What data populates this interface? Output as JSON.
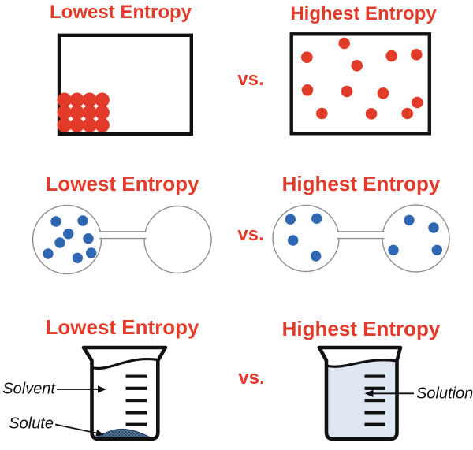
{
  "palette": {
    "red": "#e23b2a",
    "blue": "#2f67b2",
    "black": "#111111",
    "circle_gray": "#8f8f8f",
    "solution_fill": "#dfe7f3",
    "solute_navy": "#1c3c60",
    "solute_hatch": "#6e89a6"
  },
  "rows": [
    {
      "left_title": "Lowest Entropy",
      "vs_label": "vs.",
      "right_title": "Highest Entropy",
      "left_dot_radius": 9.2,
      "left_box_dots": [
        [
          81.7,
          126.7
        ],
        [
          97.7,
          126.7
        ],
        [
          113.7,
          126.7
        ],
        [
          129.7,
          126.7
        ],
        [
          81.7,
          142.7
        ],
        [
          97.7,
          142.7
        ],
        [
          113.7,
          142.7
        ],
        [
          129.7,
          142.7
        ],
        [
          81.7,
          158.7
        ],
        [
          97.7,
          158.7
        ],
        [
          113.7,
          158.7
        ],
        [
          129.7,
          158.7
        ]
      ],
      "right_dot_radius": 7.3,
      "right_box_dots": [
        [
          436.7,
          55
        ],
        [
          389.3,
          72.7
        ],
        [
          496.7,
          71
        ],
        [
          528.3,
          69.3
        ],
        [
          452.7,
          83.3
        ],
        [
          390,
          114.3
        ],
        [
          440,
          116
        ],
        [
          486,
          118.3
        ],
        [
          529.3,
          130
        ],
        [
          408.3,
          144
        ],
        [
          471,
          144.3
        ],
        [
          516.7,
          144
        ]
      ]
    },
    {
      "left_title": "Lowest Entropy",
      "vs_label": "vs.",
      "right_title": "Highest Entropy",
      "dot_radius": 6.7,
      "left_pair": {
        "left_circle_dots": [
          [
            71,
            281
          ],
          [
            105,
            280
          ],
          [
            86.7,
            296.7
          ],
          [
            76,
            308
          ],
          [
            112,
            302.7
          ],
          [
            61,
            322
          ],
          [
            98.3,
            327.3
          ],
          [
            115.7,
            321
          ]
        ],
        "right_circle_dots": []
      },
      "right_pair": {
        "left_circle_dots": [
          [
            368.3,
            278.3
          ],
          [
            401.7,
            277.3
          ],
          [
            371.7,
            305
          ],
          [
            400.7,
            325
          ]
        ],
        "right_circle_dots": [
          [
            519,
            279.3
          ],
          [
            550,
            289
          ],
          [
            499,
            317.3
          ],
          [
            554.3,
            317.3
          ]
        ]
      }
    },
    {
      "left_title": "Lowest Entropy",
      "vs_label": "vs.",
      "right_title": "Highest Entropy",
      "solvent_label": "Solvent",
      "solute_label": "Solute",
      "solution_label": "Solution"
    }
  ]
}
